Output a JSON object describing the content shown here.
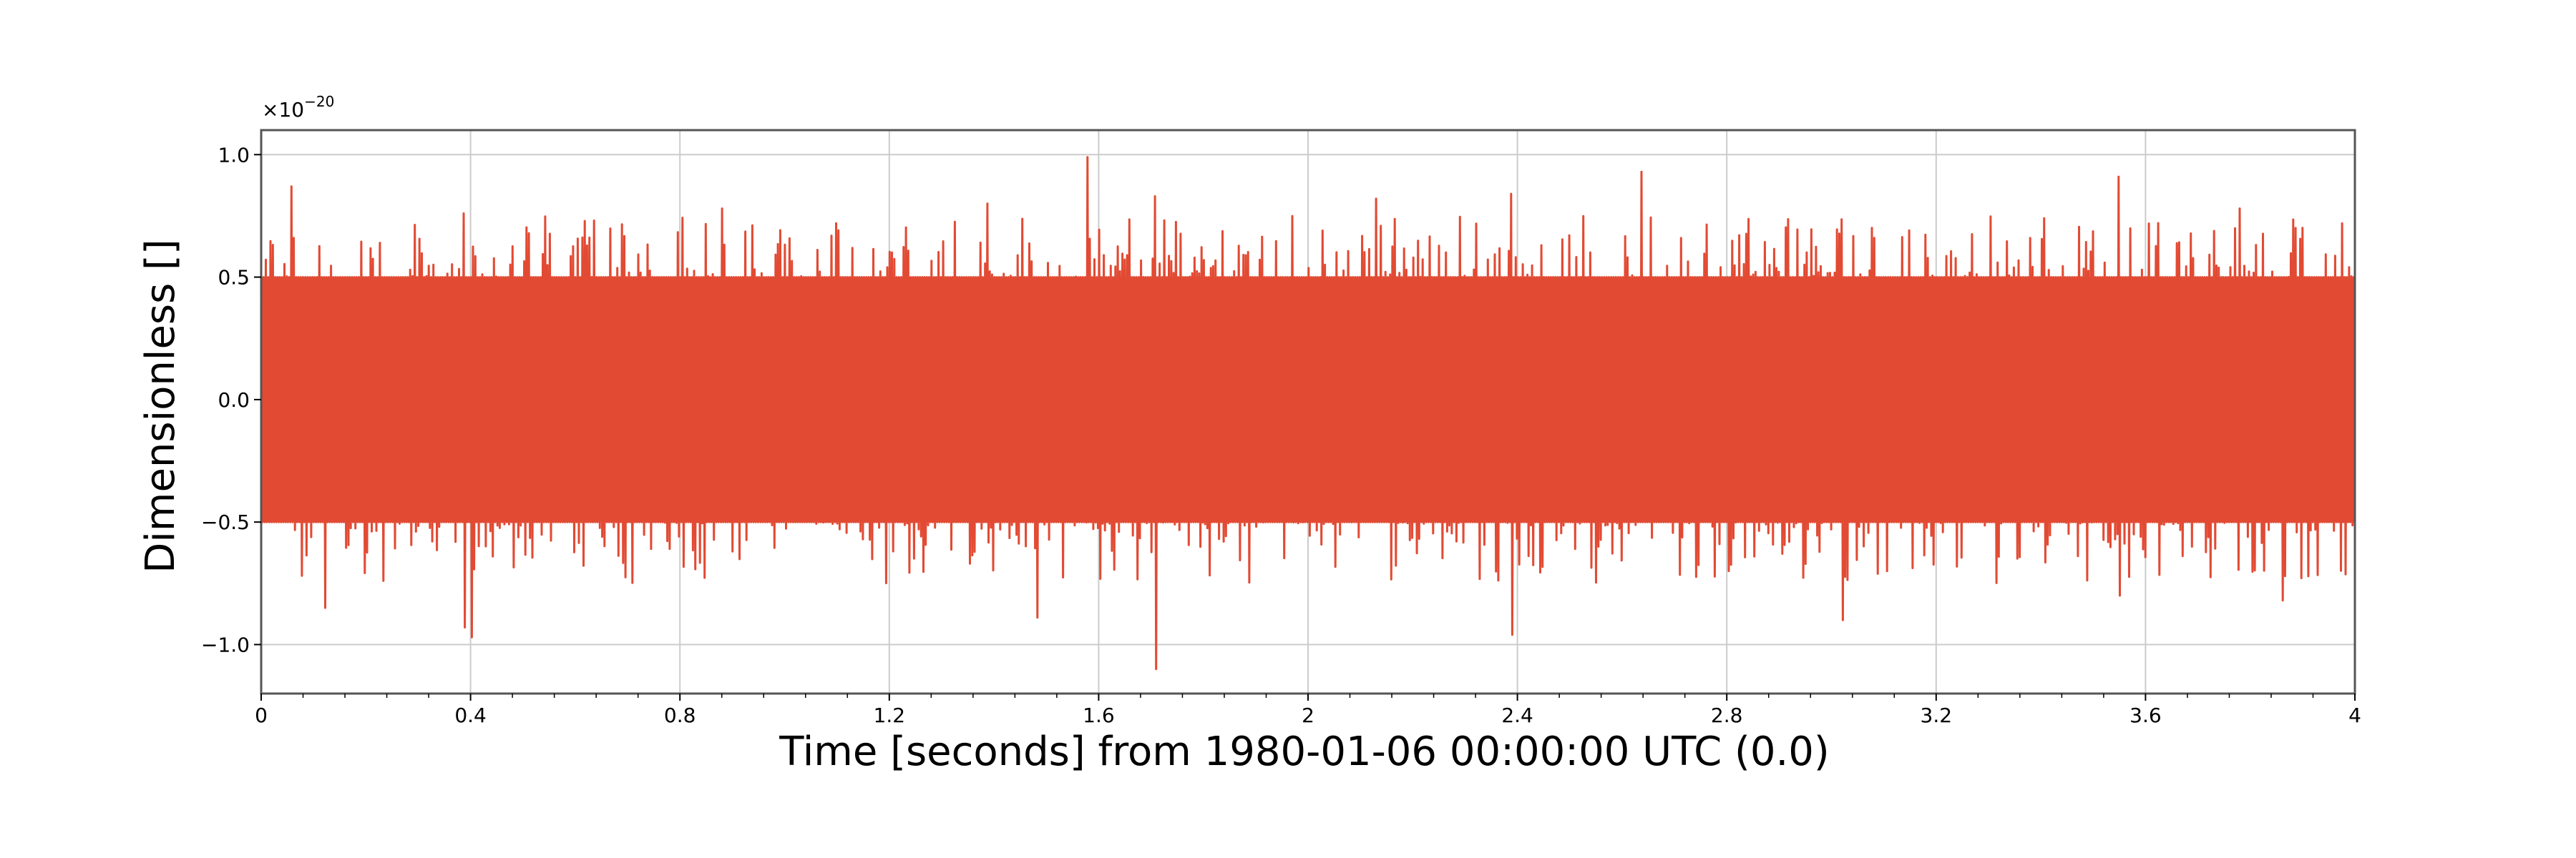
{
  "chart_data": {
    "type": "line",
    "title": "",
    "xlabel": "Time [seconds] from 1980-01-06 00:00:00 UTC (0.0)",
    "ylabel": "Dimensionless []",
    "y_multiplier_base": "×10",
    "y_multiplier_exponent": "−20",
    "xlim": [
      0,
      4
    ],
    "ylim": [
      -1.2,
      1.1
    ],
    "x_ticks": [
      0,
      0.4,
      0.8,
      1.2,
      1.6,
      2.0,
      2.4,
      2.8,
      3.2,
      3.6,
      4.0
    ],
    "x_tick_labels": [
      "0",
      "0.4",
      "0.8",
      "1.2",
      "1.6",
      "2",
      "2.4",
      "2.8",
      "3.2",
      "3.6",
      "4"
    ],
    "y_ticks": [
      -1.0,
      -0.5,
      0.0,
      0.5,
      1.0
    ],
    "y_tick_labels": [
      "−1.0",
      "−0.5",
      "0.0",
      "0.5",
      "1.0"
    ],
    "grid": true,
    "legend": "none",
    "series": [
      {
        "color": "#e24a33",
        "noise_band": [
          -0.5,
          0.5
        ],
        "samples": 1800,
        "upper_extremes": [
          {
            "x": 0.06,
            "y": 0.87
          },
          {
            "x": 0.39,
            "y": 0.76
          },
          {
            "x": 0.88,
            "y": 0.78
          },
          {
            "x": 1.39,
            "y": 0.8
          },
          {
            "x": 1.58,
            "y": 0.99
          },
          {
            "x": 1.71,
            "y": 0.83
          },
          {
            "x": 2.13,
            "y": 0.82
          },
          {
            "x": 2.39,
            "y": 0.84
          },
          {
            "x": 2.64,
            "y": 0.93
          },
          {
            "x": 3.55,
            "y": 0.91
          },
          {
            "x": 3.78,
            "y": 0.78
          }
        ],
        "lower_extremes": [
          {
            "x": 0.12,
            "y": -0.85
          },
          {
            "x": 0.39,
            "y": -0.93
          },
          {
            "x": 0.4,
            "y": -0.97
          },
          {
            "x": 1.48,
            "y": -0.89
          },
          {
            "x": 1.71,
            "y": -1.1
          },
          {
            "x": 2.39,
            "y": -0.96
          },
          {
            "x": 3.02,
            "y": -0.9
          },
          {
            "x": 3.55,
            "y": -0.8
          },
          {
            "x": 3.86,
            "y": -0.82
          }
        ]
      }
    ]
  }
}
